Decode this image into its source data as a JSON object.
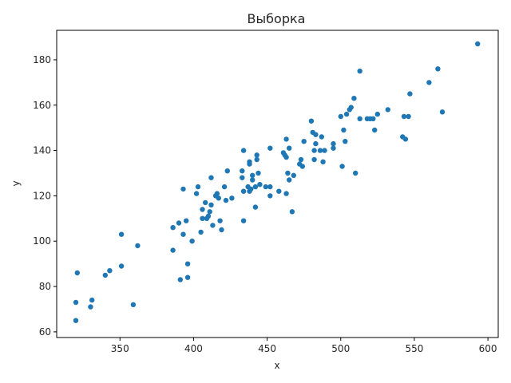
{
  "chart_data": {
    "type": "scatter",
    "title": "Выборка",
    "xlabel": "x",
    "ylabel": "y",
    "xlim": [
      307,
      607
    ],
    "ylim": [
      57.5,
      193
    ],
    "xticks": [
      350,
      400,
      450,
      500,
      550,
      600
    ],
    "yticks": [
      60,
      80,
      100,
      120,
      140,
      160,
      180
    ],
    "grid": false,
    "colors": {
      "points": "#1f77b4",
      "axes": "#000000",
      "text": "#262626",
      "background": "#ffffff"
    },
    "points": [
      {
        "x": 320,
        "y": 65
      },
      {
        "x": 320,
        "y": 73
      },
      {
        "x": 321,
        "y": 86
      },
      {
        "x": 330,
        "y": 71
      },
      {
        "x": 331,
        "y": 74
      },
      {
        "x": 340,
        "y": 85
      },
      {
        "x": 343,
        "y": 87
      },
      {
        "x": 351,
        "y": 89
      },
      {
        "x": 351,
        "y": 103
      },
      {
        "x": 359,
        "y": 72
      },
      {
        "x": 362,
        "y": 98
      },
      {
        "x": 386,
        "y": 96
      },
      {
        "x": 386,
        "y": 106
      },
      {
        "x": 390,
        "y": 108
      },
      {
        "x": 391,
        "y": 83
      },
      {
        "x": 393,
        "y": 103
      },
      {
        "x": 393,
        "y": 123
      },
      {
        "x": 395,
        "y": 109
      },
      {
        "x": 396,
        "y": 90
      },
      {
        "x": 396,
        "y": 84
      },
      {
        "x": 399,
        "y": 100
      },
      {
        "x": 402,
        "y": 121
      },
      {
        "x": 403,
        "y": 124
      },
      {
        "x": 405,
        "y": 104
      },
      {
        "x": 406,
        "y": 114
      },
      {
        "x": 406,
        "y": 110
      },
      {
        "x": 408,
        "y": 117
      },
      {
        "x": 409,
        "y": 110
      },
      {
        "x": 410,
        "y": 111
      },
      {
        "x": 411,
        "y": 113
      },
      {
        "x": 412,
        "y": 116
      },
      {
        "x": 412,
        "y": 128
      },
      {
        "x": 413,
        "y": 107
      },
      {
        "x": 415,
        "y": 120
      },
      {
        "x": 416,
        "y": 121
      },
      {
        "x": 417,
        "y": 119
      },
      {
        "x": 418,
        "y": 109
      },
      {
        "x": 419,
        "y": 105
      },
      {
        "x": 421,
        "y": 124
      },
      {
        "x": 422,
        "y": 118
      },
      {
        "x": 423,
        "y": 131
      },
      {
        "x": 426,
        "y": 119
      },
      {
        "x": 433,
        "y": 131
      },
      {
        "x": 433,
        "y": 128
      },
      {
        "x": 434,
        "y": 140
      },
      {
        "x": 434,
        "y": 122
      },
      {
        "x": 434,
        "y": 109
      },
      {
        "x": 437,
        "y": 124
      },
      {
        "x": 438,
        "y": 122
      },
      {
        "x": 438,
        "y": 135
      },
      {
        "x": 438,
        "y": 134
      },
      {
        "x": 439,
        "y": 123
      },
      {
        "x": 440,
        "y": 129
      },
      {
        "x": 440,
        "y": 127
      },
      {
        "x": 442,
        "y": 115
      },
      {
        "x": 442,
        "y": 124
      },
      {
        "x": 443,
        "y": 136
      },
      {
        "x": 443,
        "y": 138
      },
      {
        "x": 444,
        "y": 130
      },
      {
        "x": 445,
        "y": 125
      },
      {
        "x": 449,
        "y": 124
      },
      {
        "x": 452,
        "y": 120
      },
      {
        "x": 452,
        "y": 124
      },
      {
        "x": 452,
        "y": 141
      },
      {
        "x": 458,
        "y": 122
      },
      {
        "x": 461,
        "y": 139
      },
      {
        "x": 462,
        "y": 138
      },
      {
        "x": 463,
        "y": 137
      },
      {
        "x": 463,
        "y": 121
      },
      {
        "x": 463,
        "y": 145
      },
      {
        "x": 464,
        "y": 130
      },
      {
        "x": 465,
        "y": 141
      },
      {
        "x": 465,
        "y": 127
      },
      {
        "x": 467,
        "y": 113
      },
      {
        "x": 468,
        "y": 129
      },
      {
        "x": 472,
        "y": 134
      },
      {
        "x": 473,
        "y": 136
      },
      {
        "x": 474,
        "y": 133
      },
      {
        "x": 475,
        "y": 144
      },
      {
        "x": 480,
        "y": 153
      },
      {
        "x": 481,
        "y": 148
      },
      {
        "x": 482,
        "y": 136
      },
      {
        "x": 482,
        "y": 140
      },
      {
        "x": 483,
        "y": 143
      },
      {
        "x": 483,
        "y": 147
      },
      {
        "x": 486,
        "y": 140
      },
      {
        "x": 487,
        "y": 146
      },
      {
        "x": 488,
        "y": 135
      },
      {
        "x": 489,
        "y": 140
      },
      {
        "x": 495,
        "y": 141
      },
      {
        "x": 495,
        "y": 143
      },
      {
        "x": 500,
        "y": 155
      },
      {
        "x": 501,
        "y": 133
      },
      {
        "x": 502,
        "y": 149
      },
      {
        "x": 503,
        "y": 144
      },
      {
        "x": 504,
        "y": 156
      },
      {
        "x": 506,
        "y": 158
      },
      {
        "x": 507,
        "y": 159
      },
      {
        "x": 509,
        "y": 163
      },
      {
        "x": 510,
        "y": 130
      },
      {
        "x": 513,
        "y": 154
      },
      {
        "x": 513,
        "y": 175
      },
      {
        "x": 518,
        "y": 154
      },
      {
        "x": 520,
        "y": 154
      },
      {
        "x": 522,
        "y": 154
      },
      {
        "x": 523,
        "y": 149
      },
      {
        "x": 525,
        "y": 156
      },
      {
        "x": 532,
        "y": 158
      },
      {
        "x": 542,
        "y": 146
      },
      {
        "x": 543,
        "y": 155
      },
      {
        "x": 544,
        "y": 145
      },
      {
        "x": 546,
        "y": 155
      },
      {
        "x": 547,
        "y": 165
      },
      {
        "x": 560,
        "y": 170
      },
      {
        "x": 566,
        "y": 176
      },
      {
        "x": 569,
        "y": 157
      },
      {
        "x": 593,
        "y": 187
      }
    ]
  }
}
